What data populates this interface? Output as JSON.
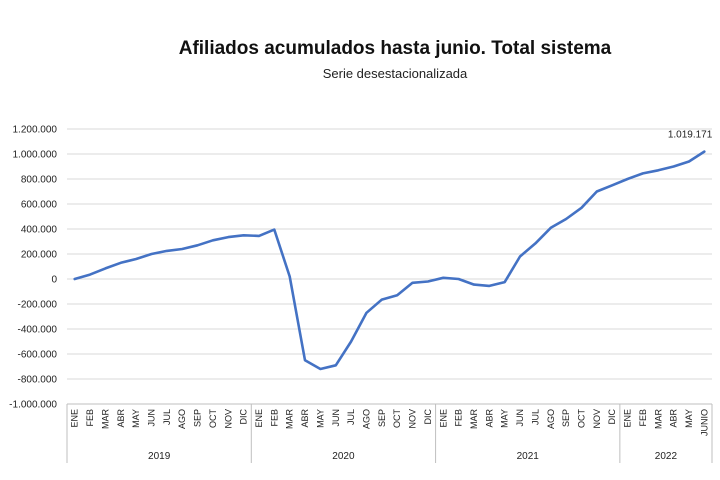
{
  "chart_data": {
    "type": "line",
    "title": "Afiliados acumulados hasta junio. Total sistema",
    "subtitle": "Serie desestacionalizada",
    "xlabel": "",
    "ylabel": "",
    "ylim": [
      -1000000,
      1200000
    ],
    "grid": true,
    "legend": "none",
    "line_color": "#4472C4",
    "y_ticks": [
      "1.200.000",
      "1.000.000",
      "800.000",
      "600.000",
      "400.000",
      "200.000",
      "0",
      "-200.000",
      "-400.000",
      "-600.000",
      "-800.000",
      "-1.000.000"
    ],
    "y_tick_values": [
      1200000,
      1000000,
      800000,
      600000,
      400000,
      200000,
      0,
      -200000,
      -400000,
      -600000,
      -800000,
      -1000000
    ],
    "categories": [
      "ENE",
      "FEB",
      "MAR",
      "ABR",
      "MAY",
      "JUN",
      "JUL",
      "AGO",
      "SEP",
      "OCT",
      "NOV",
      "DIC",
      "ENE",
      "FEB",
      "MAR",
      "ABR",
      "MAY",
      "JUN",
      "JUL",
      "AGO",
      "SEP",
      "OCT",
      "NOV",
      "DIC",
      "ENE",
      "FEB",
      "MAR",
      "ABR",
      "MAY",
      "JUN",
      "JUL",
      "AGO",
      "SEP",
      "OCT",
      "NOV",
      "DIC",
      "ENE",
      "FEB",
      "MAR",
      "ABR",
      "MAY",
      "JUNIO"
    ],
    "years": [
      {
        "label": "2019",
        "count": 12
      },
      {
        "label": "2020",
        "count": 12
      },
      {
        "label": "2021",
        "count": 12
      },
      {
        "label": "2022",
        "count": 6
      }
    ],
    "series": [
      {
        "values": [
          0,
          35000,
          85000,
          130000,
          160000,
          200000,
          225000,
          240000,
          270000,
          310000,
          335000,
          350000,
          345000,
          395000,
          20000,
          -650000,
          -720000,
          -690000,
          -500000,
          -270000,
          -165000,
          -130000,
          -30000,
          -20000,
          10000,
          0,
          -45000,
          -55000,
          -25000,
          180000,
          285000,
          410000,
          480000,
          570000,
          700000,
          750000,
          800000,
          845000,
          870000,
          900000,
          940000,
          1019171
        ]
      }
    ],
    "annotations": [
      {
        "text": "1.019.171",
        "point_index": 41
      }
    ]
  }
}
